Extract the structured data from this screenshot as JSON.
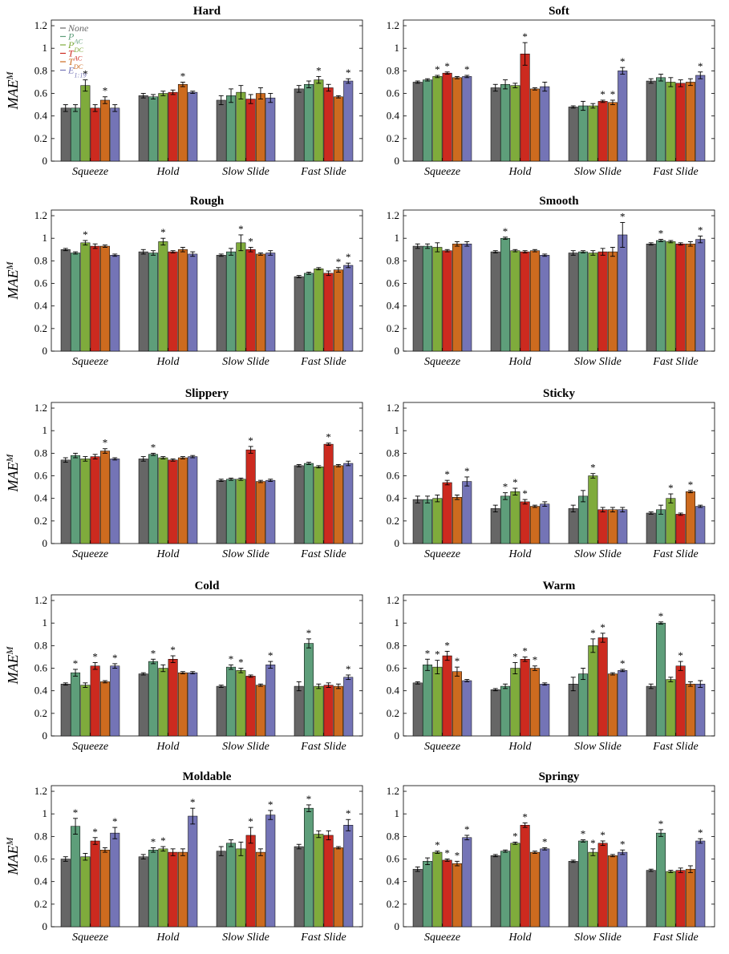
{
  "series_names": [
    "None",
    "P_AC",
    "P_DC",
    "T_AC",
    "T_DC",
    "E_1:19"
  ],
  "legend_labels": [
    "None",
    "PAC",
    "PDC",
    "TAC",
    "TDC",
    "E1:19"
  ],
  "colors": [
    "#666666",
    "#5e9e7a",
    "#7fab3c",
    "#cc2a1f",
    "#cd6b1f",
    "#7474b6"
  ],
  "ylabel": "MAE^M",
  "categories": [
    "Squeeze",
    "Hold",
    "Slow Slide",
    "Fast Slide"
  ],
  "yticks": [
    "0",
    "0.2",
    "0.4",
    "0.6",
    "0.8",
    "1",
    "1.2"
  ],
  "ylim": [
    0,
    1.25
  ],
  "chart_data": [
    {
      "type": "bar",
      "title": "Hard",
      "categories": [
        "Squeeze",
        "Hold",
        "Slow Slide",
        "Fast Slide"
      ],
      "ylabel": "MAE^M",
      "ylim": [
        0,
        1.25
      ],
      "values": [
        [
          0.47,
          0.47,
          0.67,
          0.47,
          0.54,
          0.47
        ],
        [
          0.58,
          0.57,
          0.6,
          0.61,
          0.68,
          0.61
        ],
        [
          0.54,
          0.58,
          0.61,
          0.55,
          0.6,
          0.56
        ],
        [
          0.64,
          0.68,
          0.72,
          0.65,
          0.57,
          0.71
        ]
      ],
      "errors": [
        [
          0.03,
          0.03,
          0.05,
          0.03,
          0.03,
          0.03
        ],
        [
          0.02,
          0.02,
          0.02,
          0.02,
          0.02,
          0.01
        ],
        [
          0.04,
          0.06,
          0.06,
          0.04,
          0.05,
          0.04
        ],
        [
          0.03,
          0.03,
          0.03,
          0.03,
          0.01,
          0.02
        ]
      ],
      "significant": [
        [
          0,
          0,
          1,
          0,
          1,
          0
        ],
        [
          0,
          0,
          0,
          0,
          1,
          0
        ],
        [
          0,
          0,
          0,
          0,
          0,
          0
        ],
        [
          0,
          0,
          1,
          0,
          0,
          1
        ]
      ]
    },
    {
      "type": "bar",
      "title": "Soft",
      "categories": [
        "Squeeze",
        "Hold",
        "Slow Slide",
        "Fast Slide"
      ],
      "ylabel": "MAE^M",
      "ylim": [
        0,
        1.25
      ],
      "values": [
        [
          0.7,
          0.72,
          0.75,
          0.78,
          0.74,
          0.75
        ],
        [
          0.65,
          0.68,
          0.67,
          0.95,
          0.64,
          0.66
        ],
        [
          0.48,
          0.49,
          0.49,
          0.53,
          0.52,
          0.8
        ],
        [
          0.71,
          0.74,
          0.7,
          0.69,
          0.7,
          0.76
        ]
      ],
      "errors": [
        [
          0.01,
          0.01,
          0.01,
          0.01,
          0.01,
          0.01
        ],
        [
          0.03,
          0.04,
          0.02,
          0.1,
          0.01,
          0.04
        ],
        [
          0.01,
          0.04,
          0.02,
          0.01,
          0.02,
          0.03
        ],
        [
          0.02,
          0.03,
          0.04,
          0.03,
          0.03,
          0.03
        ]
      ],
      "significant": [
        [
          0,
          0,
          1,
          1,
          0,
          1
        ],
        [
          0,
          0,
          0,
          1,
          0,
          0
        ],
        [
          0,
          0,
          0,
          1,
          1,
          1
        ],
        [
          0,
          0,
          0,
          0,
          0,
          1
        ]
      ]
    },
    {
      "type": "bar",
      "title": "Rough",
      "categories": [
        "Squeeze",
        "Hold",
        "Slow Slide",
        "Fast Slide"
      ],
      "ylabel": "MAE^M",
      "ylim": [
        0,
        1.25
      ],
      "values": [
        [
          0.9,
          0.87,
          0.96,
          0.93,
          0.93,
          0.85
        ],
        [
          0.88,
          0.87,
          0.97,
          0.88,
          0.9,
          0.86
        ],
        [
          0.85,
          0.88,
          0.96,
          0.9,
          0.86,
          0.87
        ],
        [
          0.66,
          0.69,
          0.73,
          0.69,
          0.72,
          0.76
        ]
      ],
      "errors": [
        [
          0.01,
          0.01,
          0.02,
          0.02,
          0.01,
          0.01
        ],
        [
          0.02,
          0.02,
          0.03,
          0.01,
          0.02,
          0.02
        ],
        [
          0.01,
          0.03,
          0.07,
          0.02,
          0.01,
          0.02
        ],
        [
          0.01,
          0.01,
          0.01,
          0.02,
          0.02,
          0.02
        ]
      ],
      "significant": [
        [
          0,
          0,
          1,
          0,
          0,
          0
        ],
        [
          0,
          0,
          1,
          0,
          0,
          0
        ],
        [
          0,
          0,
          1,
          1,
          0,
          0
        ],
        [
          0,
          0,
          0,
          0,
          1,
          1
        ]
      ]
    },
    {
      "type": "bar",
      "title": "Smooth",
      "categories": [
        "Squeeze",
        "Hold",
        "Slow Slide",
        "Fast Slide"
      ],
      "ylabel": "MAE^M",
      "ylim": [
        0,
        1.25
      ],
      "values": [
        [
          0.93,
          0.93,
          0.92,
          0.89,
          0.95,
          0.95
        ],
        [
          0.88,
          1.0,
          0.89,
          0.88,
          0.89,
          0.85
        ],
        [
          0.87,
          0.88,
          0.87,
          0.88,
          0.88,
          1.03
        ],
        [
          0.95,
          0.98,
          0.97,
          0.95,
          0.95,
          0.99
        ]
      ],
      "errors": [
        [
          0.02,
          0.02,
          0.04,
          0.01,
          0.02,
          0.02
        ],
        [
          0.01,
          0.01,
          0.01,
          0.01,
          0.01,
          0.01
        ],
        [
          0.02,
          0.01,
          0.02,
          0.03,
          0.04,
          0.11
        ],
        [
          0.01,
          0.01,
          0.01,
          0.01,
          0.02,
          0.03
        ]
      ],
      "significant": [
        [
          0,
          0,
          0,
          0,
          0,
          0
        ],
        [
          0,
          1,
          0,
          0,
          0,
          0
        ],
        [
          0,
          0,
          0,
          0,
          0,
          1
        ],
        [
          0,
          1,
          0,
          0,
          0,
          1
        ]
      ]
    },
    {
      "type": "bar",
      "title": "Slippery",
      "categories": [
        "Squeeze",
        "Hold",
        "Slow Slide",
        "Fast Slide"
      ],
      "ylabel": "MAE^M",
      "ylim": [
        0,
        1.25
      ],
      "values": [
        [
          0.74,
          0.78,
          0.75,
          0.77,
          0.82,
          0.75
        ],
        [
          0.75,
          0.79,
          0.76,
          0.74,
          0.76,
          0.77
        ],
        [
          0.56,
          0.57,
          0.57,
          0.83,
          0.55,
          0.56
        ],
        [
          0.69,
          0.71,
          0.68,
          0.88,
          0.69,
          0.71
        ]
      ],
      "errors": [
        [
          0.02,
          0.02,
          0.02,
          0.02,
          0.02,
          0.01
        ],
        [
          0.02,
          0.01,
          0.01,
          0.01,
          0.01,
          0.01
        ],
        [
          0.01,
          0.01,
          0.01,
          0.03,
          0.01,
          0.01
        ],
        [
          0.01,
          0.01,
          0.01,
          0.01,
          0.01,
          0.02
        ]
      ],
      "significant": [
        [
          0,
          0,
          0,
          0,
          1,
          0
        ],
        [
          0,
          1,
          0,
          0,
          0,
          0
        ],
        [
          0,
          0,
          0,
          1,
          0,
          0
        ],
        [
          0,
          0,
          0,
          1,
          0,
          0
        ]
      ]
    },
    {
      "type": "bar",
      "title": "Sticky",
      "categories": [
        "Squeeze",
        "Hold",
        "Slow Slide",
        "Fast Slide"
      ],
      "ylabel": "MAE^M",
      "ylim": [
        0,
        1.25
      ],
      "values": [
        [
          0.39,
          0.39,
          0.4,
          0.54,
          0.41,
          0.55
        ],
        [
          0.31,
          0.42,
          0.46,
          0.37,
          0.33,
          0.35
        ],
        [
          0.31,
          0.42,
          0.6,
          0.3,
          0.3,
          0.3
        ],
        [
          0.27,
          0.3,
          0.4,
          0.26,
          0.46,
          0.33
        ]
      ],
      "errors": [
        [
          0.03,
          0.03,
          0.03,
          0.02,
          0.02,
          0.04
        ],
        [
          0.03,
          0.03,
          0.03,
          0.02,
          0.01,
          0.02
        ],
        [
          0.03,
          0.05,
          0.02,
          0.02,
          0.02,
          0.02
        ],
        [
          0.01,
          0.04,
          0.04,
          0.01,
          0.01,
          0.01
        ]
      ],
      "significant": [
        [
          0,
          0,
          0,
          1,
          0,
          1
        ],
        [
          0,
          1,
          1,
          1,
          0,
          0
        ],
        [
          0,
          0,
          1,
          0,
          0,
          0
        ],
        [
          0,
          0,
          1,
          0,
          1,
          0
        ]
      ]
    },
    {
      "type": "bar",
      "title": "Cold",
      "categories": [
        "Squeeze",
        "Hold",
        "Slow Slide",
        "Fast Slide"
      ],
      "ylabel": "MAE^M",
      "ylim": [
        0,
        1.25
      ],
      "values": [
        [
          0.46,
          0.56,
          0.45,
          0.62,
          0.48,
          0.62
        ],
        [
          0.55,
          0.66,
          0.6,
          0.68,
          0.56,
          0.56
        ],
        [
          0.44,
          0.61,
          0.58,
          0.53,
          0.45,
          0.63
        ],
        [
          0.44,
          0.82,
          0.44,
          0.45,
          0.44,
          0.52
        ]
      ],
      "errors": [
        [
          0.01,
          0.03,
          0.02,
          0.03,
          0.01,
          0.02
        ],
        [
          0.01,
          0.02,
          0.03,
          0.03,
          0.01,
          0.01
        ],
        [
          0.01,
          0.02,
          0.02,
          0.01,
          0.01,
          0.03
        ],
        [
          0.04,
          0.04,
          0.02,
          0.02,
          0.02,
          0.02
        ]
      ],
      "significant": [
        [
          0,
          1,
          0,
          1,
          0,
          1
        ],
        [
          0,
          1,
          0,
          1,
          0,
          0
        ],
        [
          0,
          1,
          1,
          0,
          0,
          1
        ],
        [
          0,
          1,
          0,
          0,
          0,
          1
        ]
      ]
    },
    {
      "type": "bar",
      "title": "Warm",
      "categories": [
        "Squeeze",
        "Hold",
        "Slow Slide",
        "Fast Slide"
      ],
      "ylabel": "MAE^M",
      "ylim": [
        0,
        1.25
      ],
      "values": [
        [
          0.47,
          0.63,
          0.61,
          0.71,
          0.57,
          0.49
        ],
        [
          0.41,
          0.44,
          0.6,
          0.68,
          0.6,
          0.46
        ],
        [
          0.46,
          0.55,
          0.8,
          0.87,
          0.55,
          0.58
        ],
        [
          0.44,
          1.0,
          0.5,
          0.62,
          0.46,
          0.46
        ]
      ],
      "errors": [
        [
          0.01,
          0.05,
          0.06,
          0.04,
          0.04,
          0.01
        ],
        [
          0.01,
          0.02,
          0.05,
          0.02,
          0.02,
          0.01
        ],
        [
          0.06,
          0.05,
          0.06,
          0.04,
          0.01,
          0.01
        ],
        [
          0.02,
          0.01,
          0.02,
          0.04,
          0.02,
          0.03
        ]
      ],
      "significant": [
        [
          0,
          1,
          1,
          1,
          1,
          0
        ],
        [
          0,
          0,
          1,
          1,
          1,
          0
        ],
        [
          0,
          0,
          1,
          1,
          0,
          1
        ],
        [
          0,
          1,
          0,
          1,
          0,
          0
        ]
      ]
    },
    {
      "type": "bar",
      "title": "Moldable",
      "categories": [
        "Squeeze",
        "Hold",
        "Slow Slide",
        "Fast Slide"
      ],
      "ylabel": "MAE^M",
      "ylim": [
        0,
        1.25
      ],
      "values": [
        [
          0.6,
          0.89,
          0.62,
          0.76,
          0.68,
          0.83
        ],
        [
          0.62,
          0.68,
          0.69,
          0.66,
          0.66,
          0.98
        ],
        [
          0.67,
          0.74,
          0.69,
          0.81,
          0.66,
          0.99
        ],
        [
          0.71,
          1.05,
          0.82,
          0.81,
          0.7,
          0.9
        ]
      ],
      "errors": [
        [
          0.02,
          0.07,
          0.03,
          0.03,
          0.02,
          0.05
        ],
        [
          0.02,
          0.02,
          0.02,
          0.03,
          0.03,
          0.07
        ],
        [
          0.04,
          0.03,
          0.06,
          0.07,
          0.03,
          0.04
        ],
        [
          0.02,
          0.03,
          0.03,
          0.04,
          0.01,
          0.05
        ]
      ],
      "significant": [
        [
          0,
          1,
          0,
          1,
          0,
          1
        ],
        [
          0,
          1,
          1,
          0,
          0,
          1
        ],
        [
          0,
          0,
          0,
          1,
          0,
          1
        ],
        [
          0,
          1,
          0,
          0,
          0,
          1
        ]
      ]
    },
    {
      "type": "bar",
      "title": "Springy",
      "categories": [
        "Squeeze",
        "Hold",
        "Slow Slide",
        "Fast Slide"
      ],
      "ylabel": "MAE^M",
      "ylim": [
        0,
        1.25
      ],
      "values": [
        [
          0.51,
          0.58,
          0.66,
          0.59,
          0.56,
          0.79
        ],
        [
          0.63,
          0.67,
          0.74,
          0.9,
          0.66,
          0.69
        ],
        [
          0.58,
          0.76,
          0.66,
          0.74,
          0.63,
          0.66
        ],
        [
          0.5,
          0.83,
          0.49,
          0.5,
          0.51,
          0.76
        ]
      ],
      "errors": [
        [
          0.02,
          0.03,
          0.01,
          0.01,
          0.02,
          0.02
        ],
        [
          0.01,
          0.01,
          0.01,
          0.02,
          0.01,
          0.01
        ],
        [
          0.01,
          0.01,
          0.03,
          0.02,
          0.01,
          0.02
        ],
        [
          0.01,
          0.03,
          0.01,
          0.02,
          0.03,
          0.02
        ]
      ],
      "significant": [
        [
          0,
          0,
          1,
          1,
          1,
          1
        ],
        [
          0,
          0,
          1,
          1,
          0,
          1
        ],
        [
          0,
          1,
          1,
          1,
          0,
          1
        ],
        [
          0,
          1,
          0,
          0,
          0,
          1
        ]
      ]
    }
  ]
}
